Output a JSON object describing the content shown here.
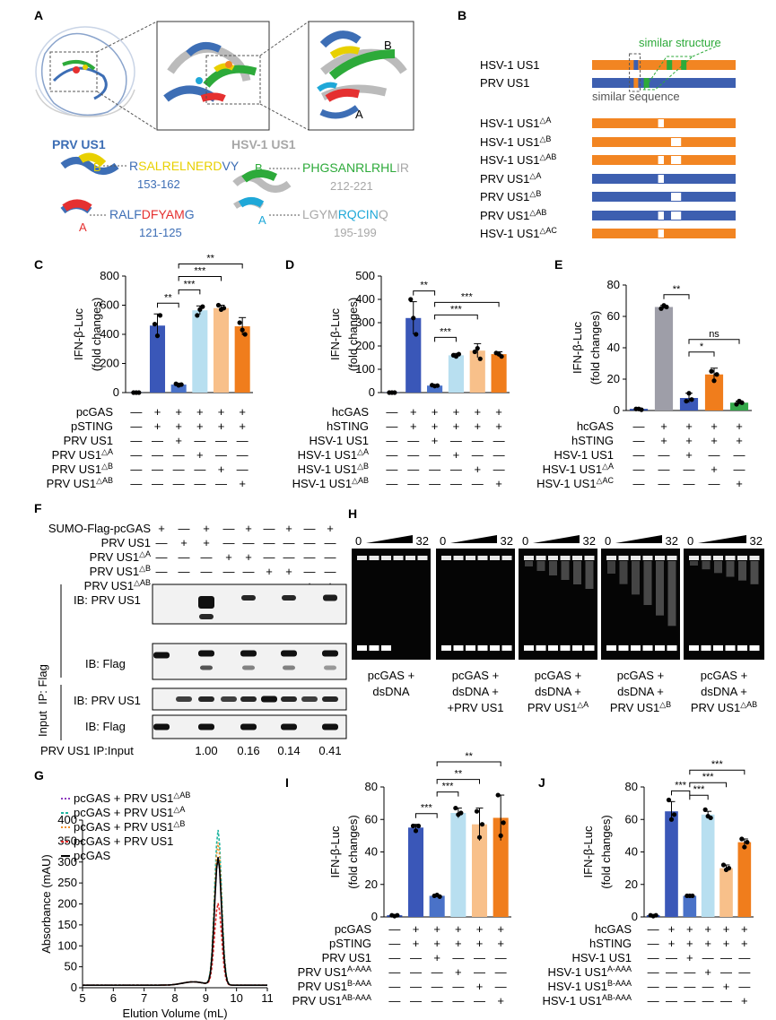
{
  "panels": {
    "A": {
      "letter": "A",
      "zoom_labels": {
        "B": "B",
        "A": "A"
      },
      "prv_title": "PRV US1",
      "hsv_title": "HSV-1 US1",
      "prv": {
        "B_letter": "B",
        "A_letter": "A",
        "seqB_pre": "R",
        "seqB_mid": "SALRELNERD",
        "seqB_post": "VY",
        "seqB_range": "153-162",
        "seqA_pre": "RALF",
        "seqA_mid": "DFYAM",
        "seqA_post": "G",
        "seqA_range": "121-125"
      },
      "hsv": {
        "B_letter": "B",
        "A_letter": "A",
        "seqB_mid": "PHGSANRLRHL",
        "seqB_post": "IR",
        "seqB_range": "212-221",
        "seqA_pre": "LGYM",
        "seqA_mid": "RQCIN",
        "seqA_post": "Q",
        "seqA_range": "195-199"
      },
      "colors": {
        "prv": "#3d6eb5",
        "hsv": "#9e9e9e",
        "yellow": "#e8d000",
        "red": "#e53030",
        "green": "#2daa3a",
        "cyan": "#1fa8d8"
      }
    },
    "B": {
      "letter": "B",
      "similar_structure": "similar structure",
      "similar_sequence": "similar sequence",
      "rows": [
        {
          "label": "HSV-1 US1",
          "sup": "",
          "color": "#f28522"
        },
        {
          "label": "PRV US1",
          "sup": "",
          "color": "#3d5fb0"
        },
        {
          "label": "HSV-1 US1",
          "sup": "△A",
          "color": "#f28522"
        },
        {
          "label": "HSV-1 US1",
          "sup": "△B",
          "color": "#f28522"
        },
        {
          "label": "HSV-1 US1",
          "sup": "△AB",
          "color": "#f28522"
        },
        {
          "label": "PRV US1",
          "sup": "△A",
          "color": "#3d5fb0"
        },
        {
          "label": "PRV US1",
          "sup": "△B",
          "color": "#3d5fb0"
        },
        {
          "label": "PRV US1",
          "sup": "△AB",
          "color": "#3d5fb0"
        },
        {
          "label": "HSV-1 US1",
          "sup": "△AC",
          "color": "#f28522"
        }
      ]
    },
    "F": {
      "letter": "F",
      "row_labels": [
        "SUMO-Flag-pcGAS",
        "PRV US1",
        "PRV US1△A",
        "PRV US1△B",
        "PRV US1△AB"
      ],
      "signs": [
        [
          "+",
          "-",
          "+",
          "-",
          "+",
          "-",
          "+",
          "-",
          "+"
        ],
        [
          "-",
          "+",
          "+",
          "-",
          "-",
          "-",
          "-",
          "-",
          "-"
        ],
        [
          "-",
          "-",
          "-",
          "+",
          "+",
          "-",
          "-",
          "-",
          "-"
        ],
        [
          "-",
          "-",
          "-",
          "-",
          "-",
          "+",
          "+",
          "-",
          "-"
        ],
        [
          "-",
          "-",
          "-",
          "-",
          "-",
          "-",
          "-",
          "+",
          "+"
        ]
      ],
      "ip_label": "IP: Flag",
      "input_label": "Input",
      "blots": [
        "IB: PRV US1",
        "IB: Flag",
        "IB: PRV US1",
        "IB: Flag"
      ],
      "ratio_label": "PRV US1 IP:Input",
      "ratios": [
        "1.00",
        "0.16",
        "0.14",
        "0.41"
      ]
    },
    "H": {
      "letter": "H",
      "gradient_start": "0",
      "gradient_end": "32",
      "captions": [
        [
          "pcGAS +",
          "dsDNA"
        ],
        [
          "pcGAS +",
          "dsDNA +",
          "+PRV US1"
        ],
        [
          "pcGAS +",
          "dsDNA +",
          "PRV US1△A"
        ],
        [
          "pcGAS +",
          "dsDNA +",
          "PRV US1△B"
        ],
        [
          "pcGAS +",
          "dsDNA +",
          "PRV US1△AB"
        ]
      ]
    }
  },
  "chart_data": [
    {
      "id": "C",
      "type": "bar",
      "ylabel": "IFN-β-Luc",
      "ylabel2": "(fold changes)",
      "ylim": [
        0,
        800
      ],
      "yticks": [
        0,
        200,
        400,
        600,
        800
      ],
      "values": [
        1,
        460,
        55,
        565,
        580,
        455
      ],
      "points": [
        [
          0,
          0,
          0
        ],
        [
          470,
          390,
          530
        ],
        [
          60,
          50,
          55
        ],
        [
          530,
          570,
          590
        ],
        [
          600,
          570,
          580
        ],
        [
          480,
          430,
          400
        ]
      ],
      "errors": [
        3,
        80,
        10,
        30,
        20,
        60
      ],
      "colors": [
        "#1f3f9f",
        "#3a57b8",
        "#4a72c8",
        "#b8dff0",
        "#f8c08a",
        "#f07d1c"
      ],
      "conditions": [
        {
          "label": "pcGAS",
          "signs": [
            "-",
            "+",
            "+",
            "+",
            "+",
            "+"
          ]
        },
        {
          "label": "pSTING",
          "signs": [
            "-",
            "+",
            "+",
            "+",
            "+",
            "+"
          ]
        },
        {
          "label": "PRV US1",
          "signs": [
            "-",
            "-",
            "+",
            "-",
            "-",
            "-"
          ]
        },
        {
          "label": "PRV US1△A",
          "signs": [
            "-",
            "-",
            "-",
            "+",
            "-",
            "-"
          ]
        },
        {
          "label": "PRV US1△B",
          "signs": [
            "-",
            "-",
            "-",
            "-",
            "+",
            "-"
          ]
        },
        {
          "label": "PRV US1△AB",
          "signs": [
            "-",
            "-",
            "-",
            "-",
            "-",
            "+"
          ]
        }
      ],
      "significance": [
        {
          "from": 1,
          "to": 2,
          "label": "**"
        },
        {
          "from": 2,
          "to": 3,
          "label": "***"
        },
        {
          "from": 2,
          "to": 4,
          "label": "***"
        },
        {
          "from": 2,
          "to": 5,
          "label": "**"
        }
      ]
    },
    {
      "id": "D",
      "type": "bar",
      "ylabel": "IFN-β-Luc",
      "ylabel2": "(fold changes)",
      "ylim": [
        0,
        500
      ],
      "yticks": [
        0,
        100,
        200,
        300,
        400,
        500
      ],
      "values": [
        1,
        320,
        30,
        160,
        180,
        165
      ],
      "points": [
        [
          0,
          0,
          0
        ],
        [
          400,
          320,
          250
        ],
        [
          32,
          28,
          30
        ],
        [
          160,
          155,
          165
        ],
        [
          175,
          190,
          145
        ],
        [
          170,
          165,
          155
        ]
      ],
      "errors": [
        2,
        70,
        4,
        8,
        30,
        10
      ],
      "colors": [
        "#1f3f9f",
        "#3a57b8",
        "#4a72c8",
        "#b8dff0",
        "#f8c08a",
        "#f07d1c"
      ],
      "conditions": [
        {
          "label": "hcGAS",
          "signs": [
            "-",
            "+",
            "+",
            "+",
            "+",
            "+"
          ]
        },
        {
          "label": "hSTING",
          "signs": [
            "-",
            "+",
            "+",
            "+",
            "+",
            "+"
          ]
        },
        {
          "label": "HSV-1 US1",
          "signs": [
            "-",
            "-",
            "+",
            "-",
            "-",
            "-"
          ]
        },
        {
          "label": "HSV-1 US1△A",
          "signs": [
            "-",
            "-",
            "-",
            "+",
            "-",
            "-"
          ]
        },
        {
          "label": "HSV-1 US1△B",
          "signs": [
            "-",
            "-",
            "-",
            "-",
            "+",
            "-"
          ]
        },
        {
          "label": "HSV-1 US1△AB",
          "signs": [
            "-",
            "-",
            "-",
            "-",
            "-",
            "+"
          ]
        }
      ],
      "significance": [
        {
          "from": 1,
          "to": 2,
          "label": "**"
        },
        {
          "from": 2,
          "to": 3,
          "label": "***"
        },
        {
          "from": 2,
          "to": 4,
          "label": "***"
        },
        {
          "from": 2,
          "to": 5,
          "label": "***"
        }
      ]
    },
    {
      "id": "E",
      "type": "bar",
      "ylabel": "IFN-β-Luc",
      "ylabel2": "(fold changes)",
      "ylim": [
        0,
        80
      ],
      "yticks": [
        0,
        20,
        40,
        60,
        80
      ],
      "values": [
        1,
        66,
        8,
        23,
        5
      ],
      "points": [
        [
          1,
          1,
          0.5
        ],
        [
          65,
          67,
          66
        ],
        [
          6,
          11,
          7
        ],
        [
          25,
          19,
          23
        ],
        [
          4,
          6,
          5
        ]
      ],
      "errors": [
        0.3,
        1,
        3,
        4,
        1
      ],
      "colors": [
        "#1f3f9f",
        "#9e9ea8",
        "#3a57b8",
        "#f07d1c",
        "#34a84a"
      ],
      "conditions": [
        {
          "label": "hcGAS",
          "signs": [
            "-",
            "+",
            "+",
            "+",
            "+"
          ]
        },
        {
          "label": "hSTING",
          "signs": [
            "-",
            "+",
            "+",
            "+",
            "+"
          ]
        },
        {
          "label": "HSV-1 US1",
          "signs": [
            "-",
            "-",
            "+",
            "-",
            "-"
          ]
        },
        {
          "label": "HSV-1 US1△A",
          "signs": [
            "-",
            "-",
            "-",
            "+",
            "-"
          ]
        },
        {
          "label": "HSV-1 US1△AC",
          "signs": [
            "-",
            "-",
            "-",
            "-",
            "+"
          ]
        }
      ],
      "significance": [
        {
          "from": 1,
          "to": 2,
          "label": "**"
        },
        {
          "from": 2,
          "to": 3,
          "label": "*"
        },
        {
          "from": 2,
          "to": 4,
          "label": "ns"
        }
      ]
    },
    {
      "id": "G",
      "type": "line",
      "xlabel": "Elution Volume (mL)",
      "ylabel": "Absorbance (mAU)",
      "xlim": [
        5,
        11
      ],
      "ylim": [
        0,
        400
      ],
      "xticks": [
        5,
        6,
        7,
        8,
        9,
        10,
        11
      ],
      "yticks": [
        0,
        50,
        100,
        150,
        200,
        250,
        300,
        350,
        400
      ],
      "peak_x": 9.4,
      "series": [
        {
          "name": "pcGAS + PRV US1△AB",
          "color": "#8e3bbf",
          "dash": "2,2",
          "peak": 305
        },
        {
          "name": "pcGAS + PRV US1△A",
          "color": "#1fb5a0",
          "dash": "3,2",
          "peak": 370
        },
        {
          "name": "pcGAS + PRV US1△B",
          "color": "#f0902a",
          "dash": "2,2",
          "peak": 340
        },
        {
          "name": "pcGAS + PRV US1",
          "color": "#e02828",
          "dash": "3,2",
          "peak": 195
        },
        {
          "name": "pcGAS",
          "color": "#000000",
          "dash": "",
          "peak": 305
        }
      ]
    },
    {
      "id": "I",
      "type": "bar",
      "ylabel": "IFN-β-Luc",
      "ylabel2": "(fold changes)",
      "ylim": [
        0,
        80
      ],
      "yticks": [
        0,
        20,
        40,
        60,
        80
      ],
      "values": [
        1,
        55,
        13,
        64,
        57,
        61
      ],
      "points": [
        [
          1,
          0.5,
          1
        ],
        [
          56,
          53,
          56
        ],
        [
          13,
          13.5,
          12.5
        ],
        [
          67,
          63,
          64
        ],
        [
          65,
          49,
          57
        ],
        [
          75,
          50,
          58
        ]
      ],
      "errors": [
        0.3,
        2,
        0.5,
        3,
        10,
        14
      ],
      "colors": [
        "#1f3f9f",
        "#3a57b8",
        "#4a72c8",
        "#b8dff0",
        "#f8c08a",
        "#f07d1c"
      ],
      "conditions": [
        {
          "label": "pcGAS",
          "signs": [
            "-",
            "+",
            "+",
            "+",
            "+",
            "+"
          ]
        },
        {
          "label": "pSTING",
          "signs": [
            "-",
            "+",
            "+",
            "+",
            "+",
            "+"
          ]
        },
        {
          "label": "PRV US1",
          "signs": [
            "-",
            "-",
            "+",
            "-",
            "-",
            "-"
          ]
        },
        {
          "label": "PRV US1A-AAA",
          "signs": [
            "-",
            "-",
            "-",
            "+",
            "-",
            "-"
          ]
        },
        {
          "label": "PRV US1B-AAA",
          "signs": [
            "-",
            "-",
            "-",
            "-",
            "+",
            "-"
          ]
        },
        {
          "label": "PRV US1AB-AAA",
          "signs": [
            "-",
            "-",
            "-",
            "-",
            "-",
            "+"
          ]
        }
      ],
      "significance": [
        {
          "from": 1,
          "to": 2,
          "label": "***"
        },
        {
          "from": 2,
          "to": 3,
          "label": "***"
        },
        {
          "from": 2,
          "to": 4,
          "label": "**"
        },
        {
          "from": 2,
          "to": 5,
          "label": "**"
        }
      ]
    },
    {
      "id": "J",
      "type": "bar",
      "ylabel": "IFN-β-Luc",
      "ylabel2": "(fold changes)",
      "ylim": [
        0,
        80
      ],
      "yticks": [
        0,
        20,
        40,
        60,
        80
      ],
      "values": [
        1,
        65,
        13,
        63,
        30,
        46
      ],
      "points": [
        [
          1,
          0.5,
          1
        ],
        [
          72,
          60,
          63
        ],
        [
          13,
          13,
          13
        ],
        [
          66,
          62,
          61
        ],
        [
          32,
          29,
          30
        ],
        [
          48,
          43,
          46
        ]
      ],
      "errors": [
        0.3,
        6,
        0.3,
        2,
        2,
        2
      ],
      "colors": [
        "#1f3f9f",
        "#3a57b8",
        "#4a72c8",
        "#b8dff0",
        "#f8c08a",
        "#f07d1c"
      ],
      "conditions": [
        {
          "label": "hcGAS",
          "signs": [
            "-",
            "+",
            "+",
            "+",
            "+",
            "+"
          ]
        },
        {
          "label": "hSTING",
          "signs": [
            "-",
            "+",
            "+",
            "+",
            "+",
            "+"
          ]
        },
        {
          "label": "HSV-1 US1",
          "signs": [
            "-",
            "-",
            "+",
            "-",
            "-",
            "-"
          ]
        },
        {
          "label": "HSV-1 US1A-AAA",
          "signs": [
            "-",
            "-",
            "-",
            "+",
            "-",
            "-"
          ]
        },
        {
          "label": "HSV-1 US1B-AAA",
          "signs": [
            "-",
            "-",
            "-",
            "-",
            "+",
            "-"
          ]
        },
        {
          "label": "HSV-1 US1AB-AAA",
          "signs": [
            "-",
            "-",
            "-",
            "-",
            "-",
            "+"
          ]
        }
      ],
      "significance": [
        {
          "from": 1,
          "to": 2,
          "label": "***"
        },
        {
          "from": 2,
          "to": 3,
          "label": "***"
        },
        {
          "from": 2,
          "to": 4,
          "label": "***"
        },
        {
          "from": 2,
          "to": 5,
          "label": "***"
        }
      ]
    }
  ]
}
